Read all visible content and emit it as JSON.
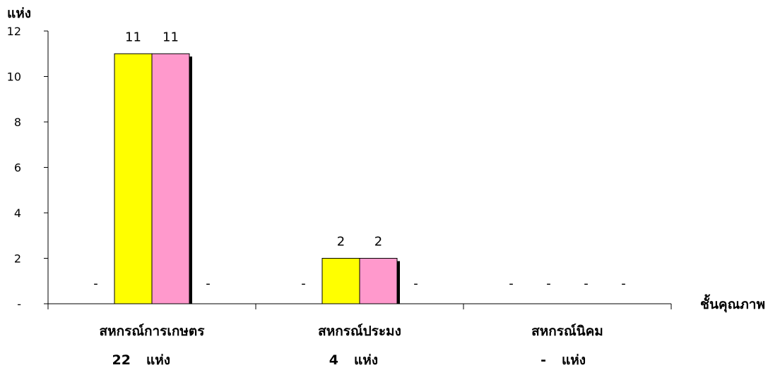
{
  "chart_data": {
    "type": "bar",
    "ylabel": "แห่ง",
    "xlabel": "ชั้นคุณภาพ",
    "ylim": [
      0,
      12
    ],
    "yticks": [
      {
        "value": 0,
        "label": "-"
      },
      {
        "value": 2,
        "label": "2"
      },
      {
        "value": 4,
        "label": "4"
      },
      {
        "value": 6,
        "label": "6"
      },
      {
        "value": 8,
        "label": "8"
      },
      {
        "value": 10,
        "label": "10"
      },
      {
        "value": 12,
        "label": "12"
      }
    ],
    "grid": false,
    "categories": [
      {
        "name": "สหกรณ์การเกษตร",
        "total": "22",
        "unit": "แห่ง"
      },
      {
        "name": "สหกรณ์ประมง",
        "total": "4",
        "unit": "แห่ง"
      },
      {
        "name": "สหกรณ์นิคม",
        "total": "-",
        "unit": "แห่ง"
      }
    ],
    "series": [
      {
        "color": "#ffffff",
        "values": [
          0,
          0,
          0
        ],
        "labels": [
          "-",
          "-",
          "-"
        ]
      },
      {
        "color": "#ffff00",
        "values": [
          11,
          2,
          0
        ],
        "labels": [
          "11",
          "2",
          "-"
        ]
      },
      {
        "color": "#ff99cc",
        "values": [
          11,
          2,
          0
        ],
        "labels": [
          "11",
          "2",
          "-"
        ]
      },
      {
        "color": "#ffffff",
        "values": [
          0,
          0,
          0
        ],
        "labels": [
          "-",
          "-",
          "-"
        ]
      }
    ]
  }
}
